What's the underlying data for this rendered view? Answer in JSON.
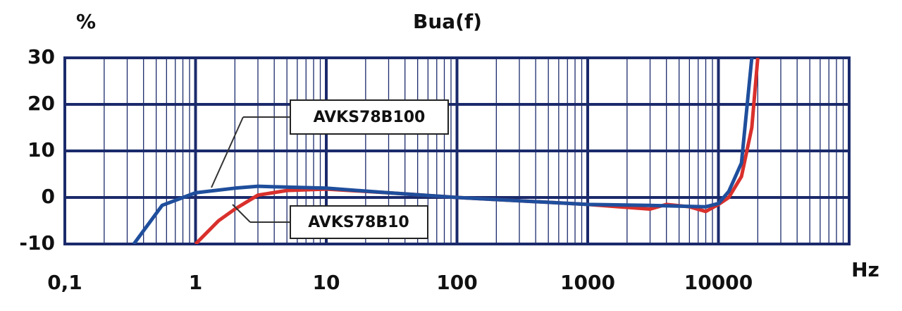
{
  "chart_data": {
    "type": "line",
    "title": "Bua(f)",
    "y_label": "%",
    "x_label": "Hz",
    "log_x": true,
    "grid": true,
    "minor_grid": true,
    "xlim": [
      0.1,
      100000
    ],
    "xticks": [
      {
        "value": 0.1,
        "label": "0,1"
      },
      1,
      10,
      100,
      1000,
      10000
    ],
    "ylim": [
      -10,
      30
    ],
    "yticks": [
      -10,
      0,
      10,
      20,
      30
    ],
    "series": [
      {
        "name": "AVKS78B100",
        "color": "#1f4e9c",
        "x": [
          0.337,
          0.555,
          1,
          2,
          3,
          10,
          30,
          100,
          1000,
          3000,
          8000,
          10000,
          12000,
          15000,
          18000
        ],
        "values": [
          -10,
          -1.7,
          1,
          2,
          2.4,
          2,
          1,
          0,
          -1.5,
          -1.7,
          -2,
          -1.3,
          1.3,
          7.4,
          30
        ]
      },
      {
        "name": "AVKS78B10",
        "color": "#d9302c",
        "x": [
          1,
          1.5,
          2,
          3,
          5,
          10,
          30,
          100,
          1000,
          3000,
          4000,
          6000,
          8000,
          10000,
          12000,
          15000,
          18000,
          20000
        ],
        "values": [
          -10,
          -5,
          -2.5,
          0.5,
          1.5,
          1.8,
          1,
          0,
          -1.5,
          -2.5,
          -1.5,
          -2,
          -3,
          -1.5,
          0,
          4.5,
          15,
          30
        ]
      }
    ]
  }
}
